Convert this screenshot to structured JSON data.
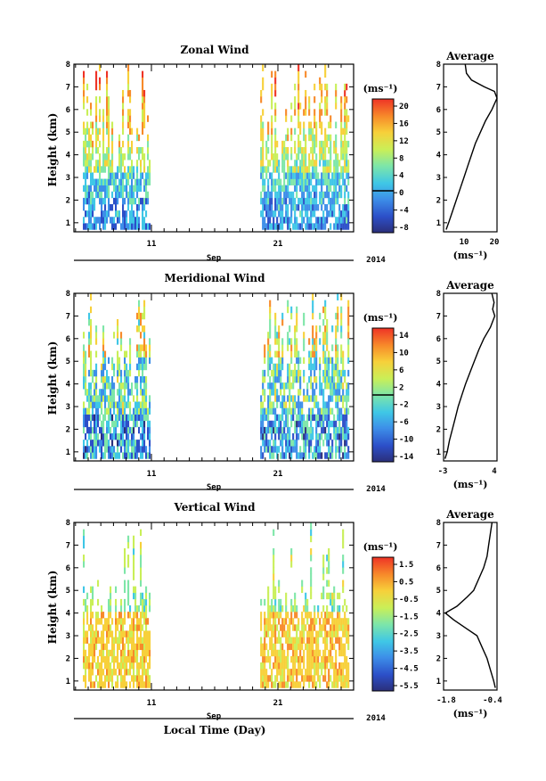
{
  "figure": {
    "xlabel": "Local Time (Day)",
    "month_label": "Sep",
    "year_label": "2014",
    "x_tick_labels": [
      "11",
      "21"
    ]
  },
  "chart_data": [
    {
      "type": "heatmap",
      "title": "Zonal Wind",
      "ylabel": "Height (km)",
      "ylim": [
        0.6,
        8
      ],
      "y_ticks": [
        1,
        2,
        3,
        4,
        5,
        6,
        7,
        8
      ],
      "x_ticks_days": [
        "11",
        "21"
      ],
      "colorbar": {
        "unit": "(ms⁻¹)",
        "ticks": [
          "20",
          "16",
          "12",
          "8",
          "4",
          "0",
          "-4",
          "-8"
        ],
        "range": [
          -10,
          22
        ],
        "zero_line": 0
      },
      "data_gaps": [
        [
          10.9,
          19.6
        ]
      ],
      "average_profile": {
        "title": "Average",
        "unit": "(ms⁻¹)",
        "x_tick_labels": [
          "10",
          "20"
        ],
        "xlim": [
          0,
          21
        ],
        "height": [
          0.7,
          1.0,
          1.5,
          2.0,
          2.5,
          3.0,
          3.5,
          4.0,
          4.5,
          5.0,
          5.5,
          6.0,
          6.5,
          6.8,
          7.0,
          7.3,
          7.6,
          8.0
        ],
        "value": [
          1.0,
          2.0,
          3.5,
          5.0,
          6.5,
          8.0,
          9.5,
          11.0,
          12.5,
          14.5,
          16.5,
          19.0,
          21.0,
          20.0,
          16.0,
          11.0,
          9.0,
          8.5
        ]
      }
    },
    {
      "type": "heatmap",
      "title": "Meridional Wind",
      "ylabel": "Height (km)",
      "ylim": [
        0.6,
        8
      ],
      "y_ticks": [
        1,
        2,
        3,
        4,
        5,
        6,
        7,
        8
      ],
      "x_ticks_days": [
        "11",
        "21"
      ],
      "colorbar": {
        "unit": "(ms⁻¹)",
        "ticks": [
          "14",
          "10",
          "6",
          "2",
          "-2",
          "-6",
          "-10",
          "-14"
        ],
        "range": [
          -16,
          16
        ],
        "zero_line": 0
      },
      "data_gaps": [
        [
          10.9,
          19.6
        ]
      ],
      "average_profile": {
        "title": "Average",
        "unit": "(ms⁻¹)",
        "x_tick_labels": [
          "-3",
          "4"
        ],
        "xlim": [
          -3,
          4.3
        ],
        "height": [
          0.7,
          1.0,
          1.5,
          2.0,
          2.5,
          3.0,
          3.5,
          4.0,
          4.5,
          5.0,
          5.5,
          6.0,
          6.5,
          7.0,
          7.3,
          7.6,
          8.0
        ],
        "value": [
          -2.8,
          -2.5,
          -2.2,
          -1.8,
          -1.4,
          -1.0,
          -0.5,
          0.0,
          0.6,
          1.2,
          1.8,
          2.5,
          3.4,
          4.0,
          3.7,
          3.9,
          3.6
        ]
      }
    },
    {
      "type": "heatmap",
      "title": "Vertical Wind",
      "ylabel": "Height (km)",
      "ylim": [
        0.6,
        8
      ],
      "y_ticks": [
        1,
        2,
        3,
        4,
        5,
        6,
        7,
        8
      ],
      "x_ticks_days": [
        "11",
        "21"
      ],
      "colorbar": {
        "unit": "(ms⁻¹)",
        "ticks": [
          "1.5",
          "0.5",
          "-0.5",
          "-1.5",
          "-2.5",
          "-3.5",
          "-4.5",
          "-5.5"
        ],
        "range": [
          -6.0,
          2.0
        ]
      },
      "data_gaps": [
        [
          10.9,
          19.6
        ]
      ],
      "average_profile": {
        "title": "Average",
        "unit": "(ms⁻¹)",
        "x_tick_labels": [
          "-1.8",
          "-0.4"
        ],
        "xlim": [
          -1.9,
          -0.3
        ],
        "height": [
          0.7,
          1.0,
          1.5,
          2.0,
          2.5,
          3.0,
          3.3,
          3.7,
          4.0,
          4.3,
          4.7,
          5.0,
          5.5,
          6.0,
          6.5,
          7.0,
          7.5,
          8.0
        ],
        "value": [
          -0.35,
          -0.4,
          -0.5,
          -0.6,
          -0.75,
          -0.9,
          -1.2,
          -1.6,
          -1.85,
          -1.5,
          -1.2,
          -1.0,
          -0.85,
          -0.7,
          -0.6,
          -0.55,
          -0.5,
          -0.45
        ]
      }
    }
  ]
}
